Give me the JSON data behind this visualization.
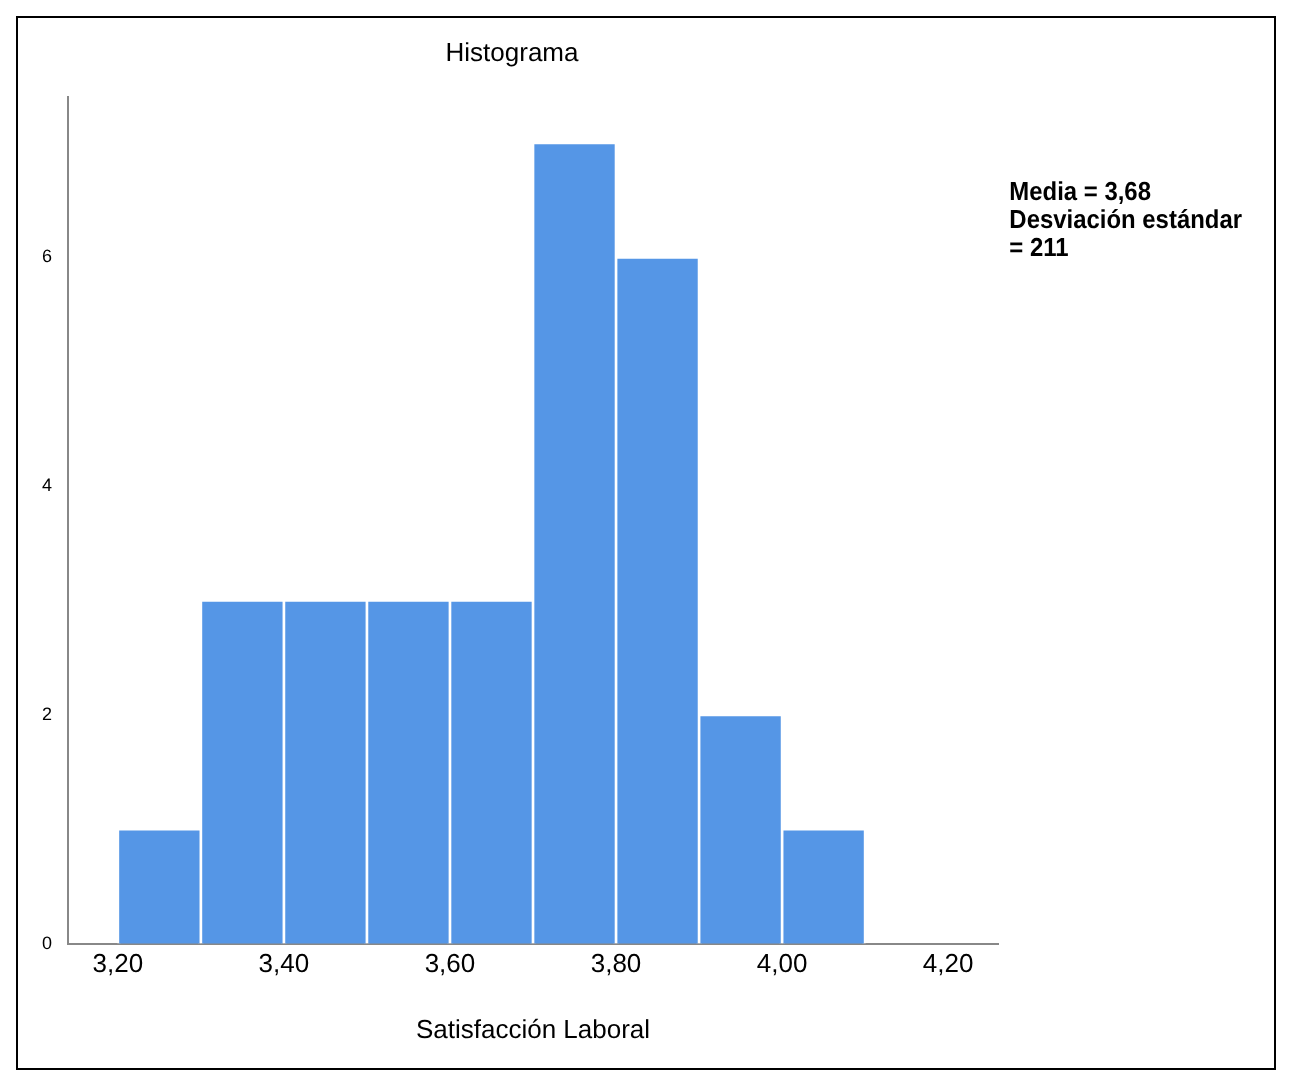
{
  "chart_data": {
    "type": "histogram",
    "title": "Histograma",
    "xlabel": "Satisfacción Laboral",
    "bins": [
      3.2,
      3.3,
      3.4,
      3.5,
      3.6,
      3.7,
      3.8,
      3.9,
      4.0,
      4.1
    ],
    "values": [
      1,
      3,
      3,
      3,
      3,
      7,
      6,
      2,
      1
    ],
    "color": "#5596e6",
    "xlim": [
      3.14,
      4.26
    ],
    "xticks": [
      {
        "value": 3.2,
        "label": "3,20"
      },
      {
        "value": 3.4,
        "label": "3,40"
      },
      {
        "value": 3.6,
        "label": "3,60"
      },
      {
        "value": 3.8,
        "label": "3,80"
      },
      {
        "value": 4.0,
        "label": "4,00"
      },
      {
        "value": 4.2,
        "label": "4,20"
      }
    ],
    "ylim": [
      0,
      7.4
    ],
    "yticks": [
      0,
      2,
      4,
      6
    ],
    "grid": false,
    "legend": false,
    "annotations": [
      "Media = 3,68",
      "Desviación estándar = 211"
    ]
  }
}
